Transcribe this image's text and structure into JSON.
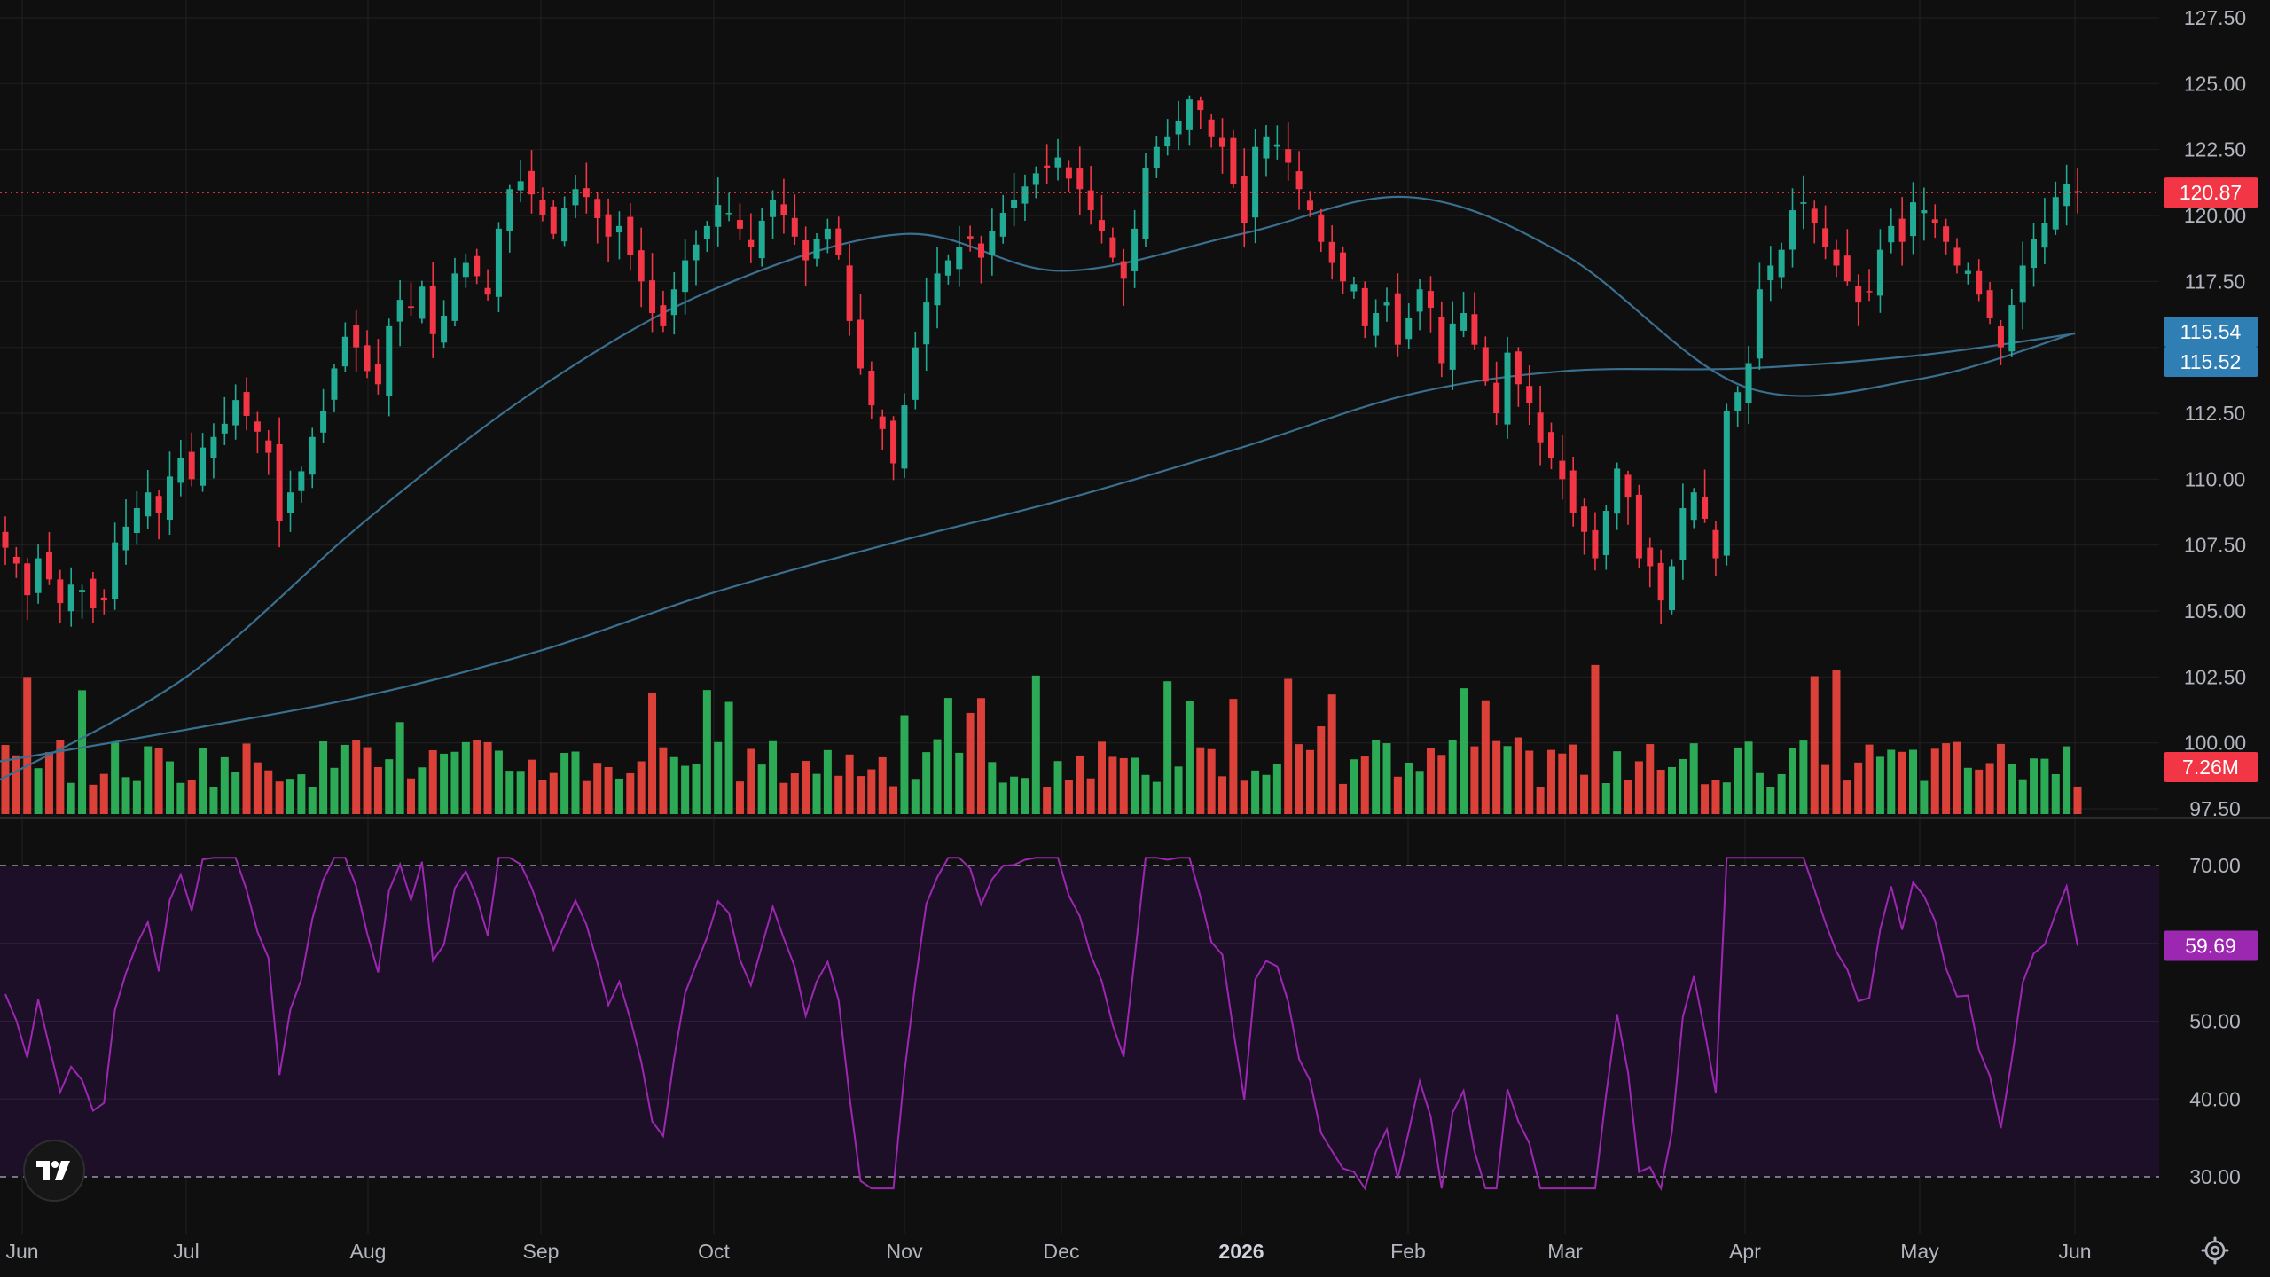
{
  "colors": {
    "background": "#0f0f0f",
    "grid": "#1f1f1f",
    "up": "#22ab94",
    "down": "#f23645",
    "volume_up": "#2eb35a",
    "volume_down": "#e8453c",
    "ma": "#3a6f8f",
    "ma_tag": "#2f7fb5",
    "rsi_line": "#9c27b0",
    "rsi_band": "#1d0f28",
    "rsi_tag": "#9c27b0",
    "price_tag": "#f23645",
    "text": "#b2b5be"
  },
  "price_axis_labels": [
    "127.50",
    "125.00",
    "122.50",
    "120.00",
    "117.50",
    "115.00",
    "112.50",
    "110.00",
    "107.50",
    "105.00",
    "102.50",
    "100.00",
    "97.50"
  ],
  "rsi_axis_labels": [
    "70.00",
    "60.00",
    "50.00",
    "40.00",
    "30.00"
  ],
  "time_axis_labels": [
    "Jun",
    "Jul",
    "Aug",
    "Sep",
    "Oct",
    "Nov",
    "Dec",
    "2026",
    "Feb",
    "Mar",
    "Apr",
    "May",
    "Jun"
  ],
  "tags": {
    "last_price": "120.87",
    "ma_fast": "115.54",
    "ma_slow": "115.52",
    "volume": "7.26M",
    "rsi": "59.69"
  },
  "chart_data": [
    {
      "type": "candlestick",
      "series_label_note": "",
      "y_axis": {
        "min": 97.5,
        "max": 127.5,
        "ticks": [
          127.5,
          125,
          122.5,
          120,
          117.5,
          115,
          112.5,
          110,
          107.5,
          105,
          102.5,
          100,
          97.5
        ]
      },
      "x_axis_labels": [
        "Jun",
        "Jul",
        "Aug",
        "Sep",
        "Oct",
        "Nov",
        "Dec",
        "2026",
        "Feb",
        "Mar",
        "Apr",
        "May",
        "Jun"
      ],
      "last_price": 120.87,
      "series": [
        {
          "type": "line",
          "values_at_months": {
            "Jun": 98.6,
            "Jul": 102.5,
            "Aug": 108.5,
            "Sep": 113.5,
            "Oct": 117.2,
            "Nov": 119.3,
            "Dec": 117.9,
            "2026": 119.3,
            "Feb": 120.7,
            "Mar": 118.5,
            "Apr": 113.5,
            "May": 113.8,
            "end": 115.54
          }
        },
        {
          "type": "line",
          "values_at_months": {
            "Jun": 99.3,
            "Jul": 100.5,
            "Aug": 101.8,
            "Sep": 103.5,
            "Oct": 105.7,
            "Nov": 107.7,
            "Dec": 109.2,
            "2026": 111.2,
            "Feb": 113.2,
            "Mar": 114.1,
            "Apr": 114.2,
            "May": 114.7,
            "end": 115.52
          }
        }
      ],
      "close_path": [
        [
          "Jun",
          107.4
        ],
        [
          "Jun",
          106.8
        ],
        [
          "Jun",
          105.6
        ],
        [
          "Jun",
          107.0
        ],
        [
          "Jun",
          106.2
        ],
        [
          "Jun",
          105.3
        ],
        [
          "Jun",
          106.0
        ],
        [
          "Jun",
          105.8
        ],
        [
          "Jun",
          105.1
        ],
        [
          "Jun",
          105.4
        ],
        [
          "Jul",
          107.6
        ],
        [
          "Jul",
          108.2
        ],
        [
          "Jul",
          108.9
        ],
        [
          "Jul",
          109.5
        ],
        [
          "Jul",
          108.7
        ],
        [
          "Jul",
          110.1
        ],
        [
          "Jul",
          110.8
        ],
        [
          "Jul",
          110.0
        ],
        [
          "Jul",
          111.2
        ],
        [
          "Jul",
          111.6
        ],
        [
          "Jul",
          112.1
        ],
        [
          "Jul",
          113.0
        ],
        [
          "Jul",
          112.4
        ],
        [
          "Jul",
          111.8
        ],
        [
          "Jul",
          111.0
        ],
        [
          "Jul",
          108.4
        ],
        [
          "Aug",
          109.5
        ],
        [
          "Aug",
          110.3
        ],
        [
          "Aug",
          111.6
        ],
        [
          "Aug",
          112.6
        ],
        [
          "Aug",
          114.2
        ],
        [
          "Aug",
          115.4
        ],
        [
          "Aug",
          115.0
        ],
        [
          "Aug",
          114.1
        ],
        [
          "Aug",
          113.6
        ],
        [
          "Aug",
          115.8
        ],
        [
          "Aug",
          116.8
        ],
        [
          "Aug",
          116.5
        ],
        [
          "Aug",
          117.3
        ],
        [
          "Aug",
          115.5
        ],
        [
          "Aug",
          116.2
        ],
        [
          "Aug",
          117.8
        ],
        [
          "Aug",
          118.2
        ],
        [
          "Aug",
          117.7
        ],
        [
          "Aug",
          117.0
        ],
        [
          "Sep",
          119.5
        ],
        [
          "Sep",
          121.0
        ],
        [
          "Sep",
          121.3
        ],
        [
          "Sep",
          120.8
        ],
        [
          "Sep",
          120.0
        ],
        [
          "Sep",
          119.3
        ],
        [
          "Sep",
          120.3
        ],
        [
          "Sep",
          121.0
        ],
        [
          "Sep",
          120.7
        ],
        [
          "Sep",
          119.9
        ],
        [
          "Sep",
          119.2
        ],
        [
          "Sep",
          119.6
        ],
        [
          "Sep",
          118.5
        ],
        [
          "Sep",
          117.5
        ],
        [
          "Sep",
          116.3
        ],
        [
          "Sep",
          115.8
        ],
        [
          "Sep",
          117.2
        ],
        [
          "Sep",
          118.3
        ],
        [
          "Oct",
          118.9
        ],
        [
          "Oct",
          119.6
        ],
        [
          "Oct",
          120.4
        ],
        [
          "Oct",
          120.1
        ],
        [
          "Oct",
          119.5
        ],
        [
          "Oct",
          118.8
        ],
        [
          "Oct",
          119.8
        ],
        [
          "Oct",
          120.6
        ],
        [
          "Oct",
          120.0
        ],
        [
          "Oct",
          119.2
        ],
        [
          "Oct",
          118.3
        ],
        [
          "Oct",
          119.1
        ],
        [
          "Oct",
          119.5
        ],
        [
          "Oct",
          118.5
        ],
        [
          "Oct",
          116.0
        ],
        [
          "Oct",
          114.2
        ],
        [
          "Oct",
          112.8
        ],
        [
          "Oct",
          111.9
        ],
        [
          "Oct",
          110.6
        ],
        [
          "Oct",
          112.8
        ],
        [
          "Nov",
          115.0
        ],
        [
          "Nov",
          116.7
        ],
        [
          "Nov",
          117.8
        ],
        [
          "Nov",
          118.3
        ],
        [
          "Nov",
          118.8
        ],
        [
          "Nov",
          119.1
        ],
        [
          "Nov",
          118.4
        ],
        [
          "Nov",
          119.4
        ],
        [
          "Nov",
          120.1
        ],
        [
          "Nov",
          120.6
        ],
        [
          "Nov",
          121.1
        ],
        [
          "Nov",
          121.6
        ],
        [
          "Nov",
          121.8
        ],
        [
          "Nov",
          122.2
        ],
        [
          "Nov",
          121.4
        ],
        [
          "Nov",
          121.0
        ],
        [
          "Nov",
          120.2
        ],
        [
          "Nov",
          119.4
        ],
        [
          "Nov",
          118.4
        ],
        [
          "Nov",
          117.6
        ],
        [
          "Dec",
          119.5
        ],
        [
          "Dec",
          121.8
        ],
        [
          "Dec",
          122.6
        ],
        [
          "Dec",
          123.0
        ],
        [
          "Dec",
          123.6
        ],
        [
          "Dec",
          124.4
        ],
        [
          "Dec",
          124.0
        ],
        [
          "Dec",
          123.0
        ],
        [
          "Dec",
          122.6
        ],
        [
          "Dec",
          121.2
        ],
        [
          "Dec",
          119.7
        ],
        [
          "Dec",
          122.6
        ],
        [
          "Dec",
          123.0
        ],
        [
          "Dec",
          122.7
        ],
        [
          "Dec",
          122.0
        ],
        [
          "Dec",
          121.0
        ],
        [
          "Dec",
          120.2
        ],
        [
          "Dec",
          119.0
        ],
        [
          "Feb",
          118.2
        ],
        [
          "Feb",
          117.5
        ],
        [
          "Feb",
          117.4
        ],
        [
          "Feb",
          115.8
        ],
        [
          "Feb",
          116.3
        ],
        [
          "Feb",
          116.7
        ],
        [
          "Feb",
          115.1
        ],
        [
          "Feb",
          116.1
        ],
        [
          "Feb",
          117.2
        ],
        [
          "Feb",
          116.5
        ],
        [
          "Feb",
          114.4
        ],
        [
          "Feb",
          115.9
        ],
        [
          "Feb",
          116.3
        ],
        [
          "Feb",
          115.1
        ],
        [
          "Feb",
          113.7
        ],
        [
          "Feb",
          112.5
        ],
        [
          "Feb",
          114.8
        ],
        [
          "Mar",
          113.6
        ],
        [
          "Mar",
          112.9
        ],
        [
          "Mar",
          111.4
        ],
        [
          "Mar",
          110.8
        ],
        [
          "Mar",
          110.0
        ],
        [
          "Mar",
          108.7
        ],
        [
          "Mar",
          108.0
        ],
        [
          "Mar",
          107.0
        ],
        [
          "Mar",
          108.8
        ],
        [
          "Mar",
          110.4
        ],
        [
          "Mar",
          109.3
        ],
        [
          "Mar",
          107.0
        ],
        [
          "Mar",
          106.7
        ],
        [
          "Mar",
          105.4
        ],
        [
          "Mar",
          106.7
        ],
        [
          "Mar",
          108.9
        ],
        [
          "Mar",
          109.5
        ],
        [
          "Mar",
          108.5
        ],
        [
          "Mar",
          107.0
        ],
        [
          "Apr",
          112.6
        ],
        [
          "Apr",
          113.3
        ],
        [
          "Apr",
          114.4
        ],
        [
          "Apr",
          117.2
        ],
        [
          "Apr",
          118.1
        ],
        [
          "Apr",
          118.7
        ],
        [
          "Apr",
          120.2
        ],
        [
          "Apr",
          120.5
        ],
        [
          "Apr",
          119.7
        ],
        [
          "Apr",
          118.8
        ],
        [
          "Apr",
          118.1
        ],
        [
          "Apr",
          117.5
        ],
        [
          "Apr",
          116.7
        ],
        [
          "Apr",
          117.1
        ],
        [
          "Apr",
          118.7
        ],
        [
          "Apr",
          119.6
        ],
        [
          "Apr",
          119.0
        ],
        [
          "Apr",
          120.5
        ],
        [
          "Apr",
          120.2
        ],
        [
          "Apr",
          119.7
        ],
        [
          "May",
          119.0
        ],
        [
          "May",
          118.1
        ],
        [
          "May",
          117.9
        ],
        [
          "May",
          117.0
        ],
        [
          "May",
          116.1
        ],
        [
          "May",
          115.0
        ],
        [
          "May",
          116.6
        ],
        [
          "May",
          118.1
        ],
        [
          "May",
          119.1
        ],
        [
          "May",
          119.7
        ],
        [
          "May",
          120.7
        ],
        [
          "May",
          121.2
        ],
        [
          "Jun",
          120.87
        ]
      ]
    },
    {
      "type": "bar",
      "subtype": "volume",
      "last_value_label": "7.26M"
    },
    {
      "type": "line",
      "subtype": "rsi",
      "y_axis": {
        "ticks": [
          70,
          60,
          50,
          40,
          30
        ]
      },
      "band": [
        30,
        70
      ],
      "last_value": 59.69,
      "x_axis_labels": [
        "Jun",
        "Jul",
        "Aug",
        "Sep",
        "Oct",
        "Nov",
        "Dec",
        "2026",
        "Feb",
        "Mar",
        "Apr",
        "May",
        "Jun"
      ]
    }
  ]
}
